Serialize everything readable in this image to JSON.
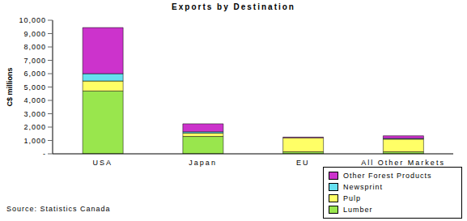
{
  "chart_data": {
    "type": "bar",
    "title": "Exports by Destination",
    "ylabel": "C$ millions",
    "annotation": "Source: Statistics Canada",
    "categories": [
      "USA",
      "Japan",
      "EU",
      "All Other Markets"
    ],
    "stacked": true,
    "legend": "lower right",
    "grid": false,
    "ylim": [
      0,
      10000
    ],
    "yticks": [
      {
        "value": 0,
        "label": "-"
      },
      {
        "value": 1000,
        "label": "1,000"
      },
      {
        "value": 2000,
        "label": "2,000"
      },
      {
        "value": 3000,
        "label": "3,000"
      },
      {
        "value": 4000,
        "label": "4,000"
      },
      {
        "value": 5000,
        "label": "5,000"
      },
      {
        "value": 6000,
        "label": "6,000"
      },
      {
        "value": 7000,
        "label": "7,000"
      },
      {
        "value": 8000,
        "label": "8,000"
      },
      {
        "value": 9000,
        "label": "9,000"
      },
      {
        "value": 10000,
        "label": "10,000"
      }
    ],
    "series": [
      {
        "name": "Lumber",
        "color": "#99E64D",
        "values": [
          4700,
          1300,
          150,
          150
        ]
      },
      {
        "name": "Pulp",
        "color": "#FFFF66",
        "values": [
          750,
          250,
          1050,
          950
        ]
      },
      {
        "name": "Newsprint",
        "color": "#66E0F0",
        "values": [
          550,
          100,
          0,
          50
        ]
      },
      {
        "name": "Other Forest Products",
        "color": "#CC33CC",
        "values": [
          3450,
          600,
          50,
          200
        ]
      }
    ]
  }
}
